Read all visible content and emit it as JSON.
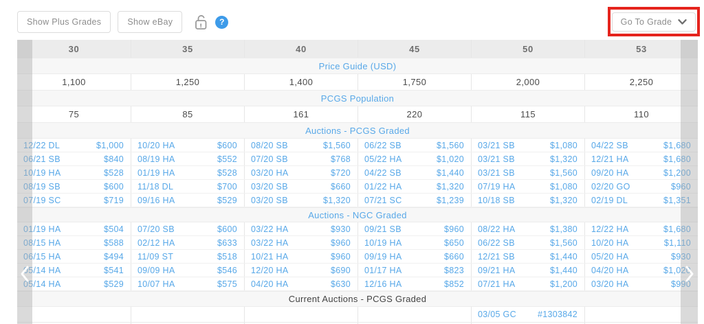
{
  "toolbar": {
    "show_plus_grades": "Show Plus Grades",
    "show_ebay": "Show eBay",
    "help_glyph": "?",
    "go_to_grade": "Go To Grade",
    "icons": {
      "lock": "open-padlock-icon",
      "help": "question-mark-circle-icon",
      "dropdown": "chevron-down-icon"
    }
  },
  "annotation": {
    "shape": "red-rectangle",
    "color": "#e5241d",
    "target": "go-to-grade-button"
  },
  "colors": {
    "accent_blue": "#58a8e8",
    "header_bg": "#ececec",
    "section_bg": "#f7f7f7",
    "header_text": "#6f6f6f",
    "value_text": "#4b4b4b",
    "annotation_red": "#e5241d"
  },
  "table": {
    "grades": [
      "30",
      "35",
      "40",
      "45",
      "50",
      "53"
    ],
    "sections": {
      "price_guide": {
        "title": "Price Guide (USD)",
        "values": [
          "1,100",
          "1,250",
          "1,400",
          "1,750",
          "2,000",
          "2,250"
        ]
      },
      "population": {
        "title": "PCGS Population",
        "values": [
          "75",
          "85",
          "161",
          "220",
          "115",
          "110"
        ]
      },
      "auctions_pcgs": {
        "title": "Auctions - PCGS Graded",
        "rows": [
          [
            {
              "d": "12/22 DL",
              "p": "$1,000"
            },
            {
              "d": "10/20 HA",
              "p": "$600"
            },
            {
              "d": "08/20 SB",
              "p": "$1,560"
            },
            {
              "d": "06/22 SB",
              "p": "$1,560"
            },
            {
              "d": "03/21 SB",
              "p": "$1,080"
            },
            {
              "d": "04/22 SB",
              "p": "$1,680"
            }
          ],
          [
            {
              "d": "06/21 SB",
              "p": "$840"
            },
            {
              "d": "08/19 HA",
              "p": "$552"
            },
            {
              "d": "07/20 SB",
              "p": "$768"
            },
            {
              "d": "05/22 HA",
              "p": "$1,020"
            },
            {
              "d": "03/21 SB",
              "p": "$1,320"
            },
            {
              "d": "12/21 HA",
              "p": "$1,680"
            }
          ],
          [
            {
              "d": "10/19 HA",
              "p": "$528"
            },
            {
              "d": "01/19 HA",
              "p": "$528"
            },
            {
              "d": "03/20 HA",
              "p": "$720"
            },
            {
              "d": "04/22 SB",
              "p": "$1,440"
            },
            {
              "d": "03/21 SB",
              "p": "$1,560"
            },
            {
              "d": "09/20 HA",
              "p": "$1,200"
            }
          ],
          [
            {
              "d": "08/19 SB",
              "p": "$600"
            },
            {
              "d": "11/18 DL",
              "p": "$700"
            },
            {
              "d": "03/20 SB",
              "p": "$660"
            },
            {
              "d": "01/22 HA",
              "p": "$1,320"
            },
            {
              "d": "07/19 HA",
              "p": "$1,080"
            },
            {
              "d": "02/20 GO",
              "p": "$960"
            }
          ],
          [
            {
              "d": "07/19 SC",
              "p": "$719"
            },
            {
              "d": "09/16 HA",
              "p": "$529"
            },
            {
              "d": "03/20 SB",
              "p": "$1,320"
            },
            {
              "d": "07/21 SC",
              "p": "$1,239"
            },
            {
              "d": "10/18 SB",
              "p": "$1,320"
            },
            {
              "d": "02/19 DL",
              "p": "$1,351"
            }
          ]
        ]
      },
      "auctions_ngc": {
        "title": "Auctions - NGC Graded",
        "rows": [
          [
            {
              "d": "01/19 HA",
              "p": "$504"
            },
            {
              "d": "07/20 SB",
              "p": "$600"
            },
            {
              "d": "03/22 HA",
              "p": "$930"
            },
            {
              "d": "09/21 SB",
              "p": "$960"
            },
            {
              "d": "08/22 HA",
              "p": "$1,380"
            },
            {
              "d": "12/22 HA",
              "p": "$1,680"
            }
          ],
          [
            {
              "d": "08/15 HA",
              "p": "$588"
            },
            {
              "d": "02/12 HA",
              "p": "$633"
            },
            {
              "d": "03/22 HA",
              "p": "$960"
            },
            {
              "d": "10/19 HA",
              "p": "$650"
            },
            {
              "d": "06/22 SB",
              "p": "$1,560"
            },
            {
              "d": "10/20 HA",
              "p": "$1,110"
            }
          ],
          [
            {
              "d": "06/15 HA",
              "p": "$494"
            },
            {
              "d": "11/09 ST",
              "p": "$518"
            },
            {
              "d": "10/21 HA",
              "p": "$960"
            },
            {
              "d": "09/19 HA",
              "p": "$660"
            },
            {
              "d": "12/21 SB",
              "p": "$1,440"
            },
            {
              "d": "05/20 HA",
              "p": "$930"
            }
          ],
          [
            {
              "d": "05/14 HA",
              "p": "$541"
            },
            {
              "d": "09/09 HA",
              "p": "$546"
            },
            {
              "d": "12/20 HA",
              "p": "$690"
            },
            {
              "d": "01/17 HA",
              "p": "$823"
            },
            {
              "d": "09/21 HA",
              "p": "$1,440"
            },
            {
              "d": "04/20 HA",
              "p": "$1,020"
            }
          ],
          [
            {
              "d": "05/14 HA",
              "p": "$529"
            },
            {
              "d": "10/07 HA",
              "p": "$575"
            },
            {
              "d": "04/20 HA",
              "p": "$630"
            },
            {
              "d": "12/16 HA",
              "p": "$852"
            },
            {
              "d": "07/21 HA",
              "p": "$1,200"
            },
            {
              "d": "03/20 HA",
              "p": "$990"
            }
          ]
        ]
      },
      "current_auctions": {
        "title": "Current Auctions - PCGS Graded",
        "cells": [
          null,
          null,
          null,
          null,
          {
            "d": "03/05 GC",
            "p": "#1303842"
          },
          null
        ]
      }
    },
    "scroll": {
      "left_chevron": "‹",
      "right_chevron": "›"
    }
  }
}
